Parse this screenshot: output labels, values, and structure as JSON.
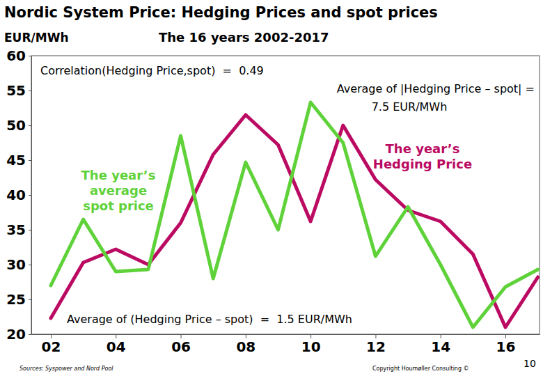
{
  "chart_data": {
    "type": "line",
    "title": "Nordic System Price: Hedging Prices and spot prices",
    "subtitle": "The 16 years 2002-2017",
    "ylabel": "EUR/MWh",
    "x": [
      2002,
      2003,
      2004,
      2005,
      2006,
      2007,
      2008,
      2009,
      2010,
      2011,
      2012,
      2013,
      2014,
      2015,
      2016,
      2017
    ],
    "series": [
      {
        "name": "The year’s Hedging Price",
        "color": "#bb0a62",
        "values": [
          22.3,
          30.3,
          32.2,
          30,
          36,
          45.8,
          51.5,
          47.2,
          36.2,
          50,
          42.2,
          37.8,
          36.2,
          31.5,
          21,
          28.2
        ]
      },
      {
        "name": "The year’s average spot price",
        "color": "#5fd23a",
        "values": [
          27,
          36.5,
          29,
          29.3,
          48.5,
          28,
          44.7,
          35,
          53.3,
          47.5,
          31.2,
          38.3,
          30,
          21,
          26.8,
          29.3
        ]
      }
    ],
    "xlim": [
      2001.4,
      2017.05
    ],
    "xticks": [
      {
        "value": 2002,
        "label": "02"
      },
      {
        "value": 2004,
        "label": "04"
      },
      {
        "value": 2006,
        "label": "06"
      },
      {
        "value": 2008,
        "label": "08"
      },
      {
        "value": 2010,
        "label": "10"
      },
      {
        "value": 2012,
        "label": "12"
      },
      {
        "value": 2014,
        "label": "14"
      },
      {
        "value": 2016,
        "label": "16"
      }
    ],
    "ylim": [
      20,
      60
    ],
    "yticks": [
      20,
      25,
      30,
      35,
      40,
      45,
      50,
      55,
      60
    ],
    "grid": false,
    "annotations": [
      "Correlation(Hedging Price,spot)  =  0.49",
      "Average of |Hedging Price – spot| =",
      "7.5 EUR/MWh",
      "Average of (Hedging Price – spot)  =  1.5 EUR/MWh"
    ],
    "footer": {
      "source": "Sources: Syspower and Nord Pool",
      "copyright": "Copyright Houmøller Consulting ©",
      "page": "10"
    }
  }
}
